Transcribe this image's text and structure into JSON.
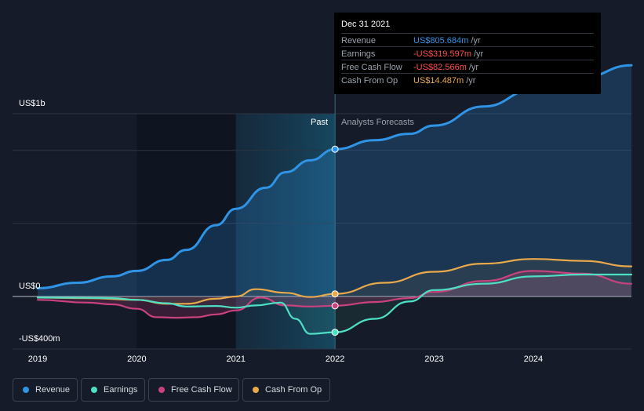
{
  "chart_data": {
    "type": "line",
    "x_axis": {
      "ticks": [
        "2019",
        "2020",
        "2021",
        "2022",
        "2023",
        "2024"
      ],
      "range": [
        2019.0,
        2024.99
      ]
    },
    "y_axis": {
      "labels": {
        "top": "US$1b",
        "zero": "US$0",
        "bottom": "-US$400m"
      },
      "range_musd": [
        -400,
        1000
      ]
    },
    "regions": {
      "past_label": "Past",
      "forecast_label": "Analysts Forecasts",
      "divider_x": 2022.0
    },
    "series": [
      {
        "name": "Revenue",
        "color": "#2f94e6",
        "x": [
          2019.0,
          2019.4,
          2019.75,
          2020.0,
          2020.3,
          2020.5,
          2020.8,
          2021.0,
          2021.3,
          2021.5,
          2021.75,
          2022.0,
          2022.4,
          2022.75,
          2023.0,
          2023.5,
          2024.0,
          2024.5,
          2024.99
        ],
        "y": [
          45,
          75,
          110,
          140,
          200,
          255,
          390,
          480,
          595,
          680,
          745,
          806,
          855,
          890,
          935,
          1040,
          1130,
          1200,
          1265
        ]
      },
      {
        "name": "Earnings",
        "color": "#4ee0c4",
        "x": [
          2019.0,
          2019.5,
          2019.75,
          2020.0,
          2020.3,
          2020.5,
          2020.8,
          2021.0,
          2021.2,
          2021.45,
          2021.6,
          2021.75,
          2022.0,
          2022.4,
          2022.75,
          2023.0,
          2023.5,
          2024.0,
          2024.5,
          2024.99
        ],
        "y": [
          -10,
          -12,
          -15,
          -30,
          -60,
          -90,
          -85,
          -100,
          -80,
          -55,
          -200,
          -335,
          -320,
          -200,
          -45,
          35,
          70,
          110,
          120,
          120
        ]
      },
      {
        "name": "Free Cash Flow",
        "color": "#c9427e",
        "x": [
          2019.0,
          2019.5,
          2019.75,
          2020.0,
          2020.2,
          2020.4,
          2020.6,
          2020.8,
          2021.0,
          2021.25,
          2021.5,
          2021.75,
          2022.0,
          2022.4,
          2022.75,
          2023.0,
          2023.5,
          2024.0,
          2024.5,
          2024.99
        ],
        "y": [
          -30,
          -55,
          -70,
          -110,
          -185,
          -190,
          -185,
          -160,
          -125,
          -10,
          -80,
          -90,
          -83,
          -50,
          -15,
          25,
          85,
          140,
          125,
          70
        ]
      },
      {
        "name": "Cash From Op",
        "color": "#e9a94b",
        "x": [
          2019.0,
          2019.5,
          2020.0,
          2020.3,
          2020.5,
          2020.8,
          2021.0,
          2021.2,
          2021.5,
          2021.75,
          2022.0,
          2022.5,
          2023.0,
          2023.5,
          2024.0,
          2024.5,
          2024.99
        ],
        "y": [
          -10,
          -15,
          -30,
          -65,
          -65,
          -20,
          0,
          40,
          20,
          -5,
          14,
          75,
          135,
          180,
          205,
          195,
          165
        ]
      }
    ],
    "tooltip": {
      "date": "Dec 31 2021",
      "rows": [
        {
          "label": "Revenue",
          "value": "US$805.684m",
          "unit": "/yr",
          "color": "#2f94e6"
        },
        {
          "label": "Earnings",
          "value": "-US$319.597m",
          "unit": "/yr",
          "color": "#ff4d4d"
        },
        {
          "label": "Free Cash Flow",
          "value": "-US$82.566m",
          "unit": "/yr",
          "color": "#ff4d4d"
        },
        {
          "label": "Cash From Op",
          "value": "US$14.487m",
          "unit": "/yr",
          "color": "#e9a94b"
        }
      ]
    },
    "highlight_x": 2022.0,
    "highlight_values": {
      "Revenue": 806,
      "Earnings": -320,
      "Free Cash Flow": -83,
      "Cash From Op": 14
    }
  },
  "legend": [
    {
      "label": "Revenue",
      "color": "#2f94e6"
    },
    {
      "label": "Earnings",
      "color": "#4ee0c4"
    },
    {
      "label": "Free Cash Flow",
      "color": "#c9427e"
    },
    {
      "label": "Cash From Op",
      "color": "#e9a94b"
    }
  ]
}
